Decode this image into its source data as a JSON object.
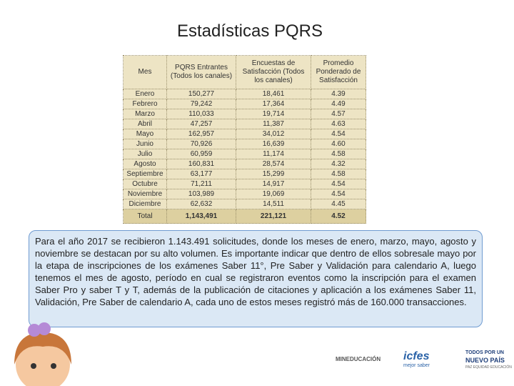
{
  "title": "Estadísticas PQRS",
  "table": {
    "header": [
      "Mes",
      "PQRS Entrantes (Todos los canales)",
      "Encuestas de Satisfacción (Todos los canales)",
      "Promedio Ponderado de Satisfacción"
    ],
    "rows": [
      [
        "Enero",
        "150,277",
        "18,461",
        "4.39"
      ],
      [
        "Febrero",
        "79,242",
        "17,364",
        "4.49"
      ],
      [
        "Marzo",
        "110,033",
        "19,714",
        "4.57"
      ],
      [
        "Abril",
        "47,257",
        "11,387",
        "4.63"
      ],
      [
        "Mayo",
        "162,957",
        "34,012",
        "4.54"
      ],
      [
        "Junio",
        "70,926",
        "16,639",
        "4.60"
      ],
      [
        "Julio",
        "60,959",
        "11,174",
        "4.58"
      ],
      [
        "Agosto",
        "160,831",
        "28,574",
        "4.32"
      ],
      [
        "Septiembre",
        "63,177",
        "15,299",
        "4.58"
      ],
      [
        "Octubre",
        "71,211",
        "14,917",
        "4.54"
      ],
      [
        "Noviembre",
        "103,989",
        "19,069",
        "4.54"
      ],
      [
        "Diciembre",
        "62,632",
        "14,511",
        "4.45"
      ]
    ],
    "total": [
      "Total",
      "1,143,491",
      "221,121",
      "4.52"
    ]
  },
  "paragraph": "Para el año 2017 se recibieron 1.143.491 solicitudes, donde los meses de enero, marzo, mayo, agosto y noviembre se destacan por su alto volumen. Es importante indicar que dentro de ellos sobresale mayo por la etapa de inscripciones de los exámenes Saber 11°, Pre Saber y Validación para calendario A, luego tenemos el mes de agosto, período en cual se registraron eventos como la inscripción para el examen Saber Pro y saber T y T, además de la publicación de citaciones y aplicación a los exámenes Saber 11, Validación, Pre Saber de calendario A, cada uno de estos meses registró más de 160.000 transacciones.",
  "footer": {
    "mineducacion": "MINEDUCACIÓN",
    "icfes": "icfes",
    "icfes_tagline": "mejor saber",
    "gov_line1": "TODOS POR UN",
    "gov_line2": "NUEVO PAÍS",
    "gov_line3": "PAZ EQUIDAD EDUCACIÓN"
  }
}
